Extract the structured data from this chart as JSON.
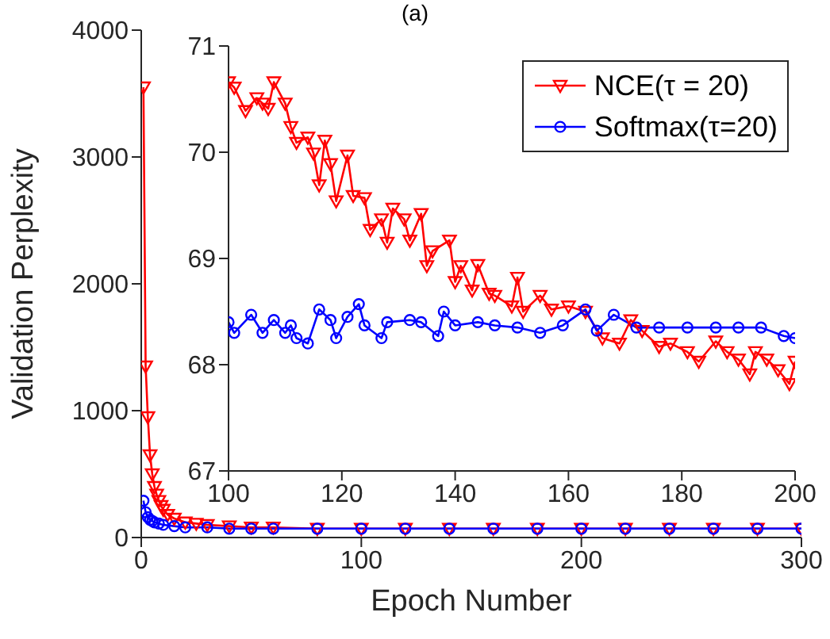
{
  "chart_data": [
    {
      "type": "line",
      "title": "(a)",
      "xlabel": "Epoch Number",
      "ylabel": "Validation Perplexity",
      "xlim": [
        0,
        300
      ],
      "xticks": [
        0,
        100,
        200,
        300
      ],
      "ylim": [
        0,
        4000
      ],
      "yticks": [
        0,
        1000,
        2000,
        3000,
        4000
      ],
      "series": [
        {
          "color": "#ff0000",
          "marker": "triangle",
          "x": [
            1,
            2,
            3,
            4,
            5,
            6,
            7,
            8,
            9,
            10,
            12,
            15,
            20,
            25,
            30,
            40,
            50,
            60,
            80,
            100,
            120,
            140,
            160,
            180,
            200,
            220,
            240,
            260,
            280,
            300
          ],
          "values": [
            3550,
            1350,
            950,
            650,
            500,
            400,
            340,
            290,
            250,
            220,
            180,
            150,
            120,
            110,
            100,
            90,
            80,
            80,
            70,
            70,
            70,
            70,
            70,
            70,
            70,
            70,
            70,
            70,
            70,
            70
          ]
        },
        {
          "color": "#0000ff",
          "marker": "circle",
          "x": [
            1,
            2,
            3,
            4,
            5,
            6,
            8,
            10,
            15,
            20,
            30,
            40,
            50,
            60,
            80,
            100,
            120,
            140,
            160,
            180,
            200,
            220,
            240,
            260,
            280,
            300
          ],
          "values": [
            290,
            200,
            160,
            140,
            130,
            120,
            110,
            100,
            90,
            80,
            80,
            70,
            70,
            70,
            70,
            70,
            70,
            70,
            70,
            70,
            70,
            70,
            70,
            70,
            70,
            70
          ]
        }
      ]
    },
    {
      "type": "line",
      "xlim": [
        100,
        200
      ],
      "xticks": [
        100,
        120,
        140,
        160,
        180,
        200
      ],
      "ylim": [
        67,
        71
      ],
      "yticks": [
        67,
        68,
        69,
        70,
        71
      ],
      "legend": "top right",
      "series": [
        {
          "name": "NCE(τ = 20)",
          "color": "#ff0000",
          "marker": "triangle",
          "x": [
            100,
            101,
            103,
            105,
            106,
            107,
            108,
            110,
            111,
            112,
            114,
            115,
            116,
            117,
            118,
            119,
            121,
            122,
            124,
            125,
            127,
            128,
            129,
            131,
            132,
            134,
            135,
            136,
            139,
            140,
            141,
            143,
            144,
            146,
            147,
            150,
            151,
            152,
            155,
            157,
            160,
            163,
            166,
            169,
            171,
            173,
            176,
            178,
            181,
            183,
            186,
            188,
            190,
            192,
            193,
            195,
            197,
            199,
            200
          ],
          "values": [
            70.66,
            70.61,
            70.39,
            70.51,
            70.46,
            70.41,
            70.66,
            70.46,
            70.24,
            70.09,
            70.14,
            69.99,
            69.69,
            70.11,
            69.89,
            69.54,
            69.97,
            69.59,
            69.57,
            69.27,
            69.37,
            69.15,
            69.47,
            69.37,
            69.17,
            69.42,
            68.93,
            69.07,
            69.17,
            68.78,
            68.93,
            68.7,
            68.94,
            68.67,
            68.65,
            68.55,
            68.82,
            68.5,
            68.65,
            68.52,
            68.55,
            68.5,
            68.25,
            68.2,
            68.42,
            68.32,
            68.17,
            68.2,
            68.12,
            68.03,
            68.22,
            68.12,
            68.05,
            67.91,
            68.12,
            68.05,
            67.95,
            67.82,
            68.03
          ]
        },
        {
          "name": "Softmax(τ=20)",
          "color": "#0000ff",
          "marker": "circle",
          "x": [
            100,
            101,
            104,
            106,
            108,
            110,
            111,
            112,
            114,
            116,
            118,
            119,
            121,
            123,
            124,
            127,
            128,
            132,
            134,
            137,
            138,
            140,
            144,
            147,
            151,
            155,
            159,
            163,
            165,
            168,
            172,
            176,
            181,
            186,
            190,
            194,
            198,
            200
          ],
          "values": [
            68.4,
            68.3,
            68.47,
            68.3,
            68.42,
            68.3,
            68.37,
            68.25,
            68.2,
            68.52,
            68.42,
            68.25,
            68.45,
            68.57,
            68.37,
            68.25,
            68.4,
            68.42,
            68.4,
            68.27,
            68.5,
            68.37,
            68.4,
            68.37,
            68.35,
            68.3,
            68.37,
            68.52,
            68.32,
            68.47,
            68.35,
            68.35,
            68.35,
            68.35,
            68.35,
            68.35,
            68.27,
            68.25
          ]
        }
      ]
    }
  ]
}
